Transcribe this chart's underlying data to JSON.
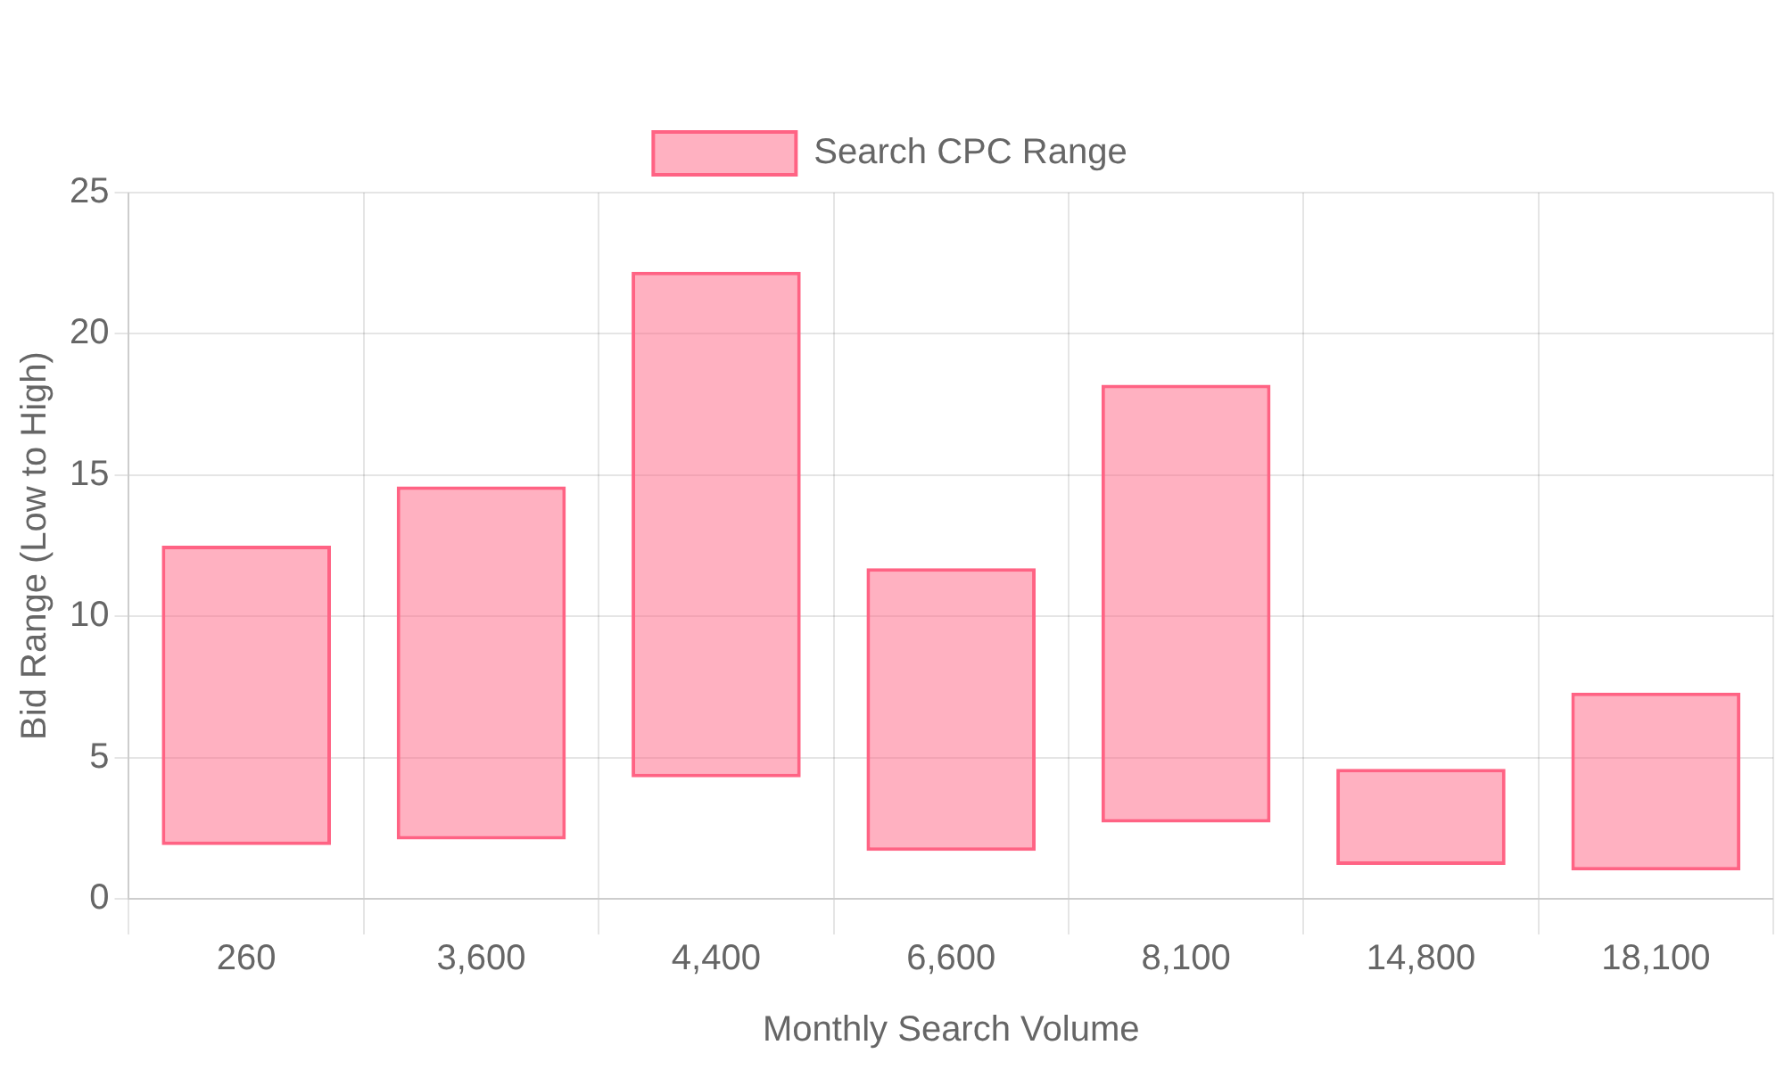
{
  "chart_data": {
    "type": "bar",
    "xlabel": "Monthly Search Volume",
    "ylabel": "Bid Range (Low to High)",
    "categories": [
      "260",
      "3,600",
      "4,400",
      "6,600",
      "8,100",
      "14,800",
      "18,100"
    ],
    "series": [
      {
        "name": "Search CPC Range",
        "color": "#ff6384",
        "values": [
          10.6,
          12.5,
          17.9,
          10.0,
          15.5,
          3.4,
          6.3
        ],
        "base": [
          1.9,
          2.1,
          4.3,
          1.7,
          2.7,
          1.2,
          1.0
        ]
      }
    ],
    "ylim": [
      0,
      25
    ],
    "yticks": [
      0,
      5,
      10,
      15,
      20,
      25
    ],
    "grid": true,
    "legend": "top"
  }
}
